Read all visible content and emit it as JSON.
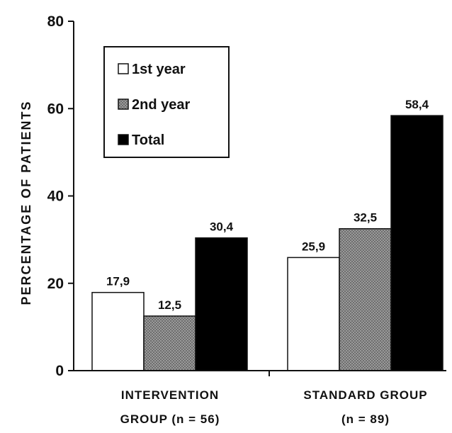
{
  "chart_data": {
    "type": "bar",
    "title": "",
    "xlabel": "",
    "ylabel": "PERCENTAGE OF PATIENTS",
    "ylim": [
      0,
      80
    ],
    "yticks": [
      0,
      20,
      40,
      60,
      80
    ],
    "grid": false,
    "legend_position": "top-left",
    "categories": [
      [
        "INTERVENTION",
        "GROUP  (n = 56)"
      ],
      [
        "STANDARD GROUP",
        "(n = 89)"
      ]
    ],
    "series": [
      {
        "name": "1st year",
        "values": [
          17.9,
          25.9
        ],
        "labels": [
          "17,9",
          "25,9"
        ],
        "fill": "#ffffff"
      },
      {
        "name": "2nd year",
        "values": [
          12.5,
          32.5
        ],
        "labels": [
          "12,5",
          "32,5"
        ],
        "fill": "#8a8a8a"
      },
      {
        "name": "Total",
        "values": [
          30.4,
          58.4
        ],
        "labels": [
          "30,4",
          "58,4"
        ],
        "fill": "#000000"
      }
    ]
  }
}
